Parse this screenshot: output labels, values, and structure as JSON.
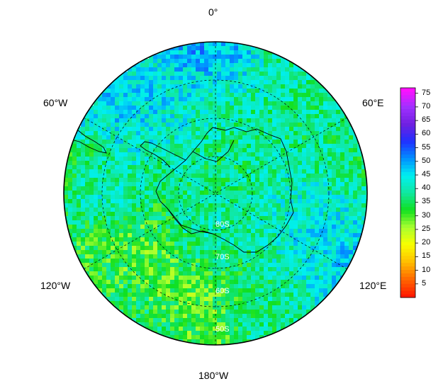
{
  "map": {
    "projection": "south-polar-stereographic",
    "longitude_labels": {
      "top": "0°",
      "upper_left": "60°W",
      "upper_right": "60°E",
      "lower_left": "120°W",
      "lower_right": "120°E",
      "bottom": "180°W"
    },
    "latitude_labels": [
      "80S",
      "70S",
      "60S",
      "50S"
    ],
    "features": [
      "antarctica-coastline",
      "south-america-tip",
      "antarctic-peninsula"
    ]
  },
  "colorbar": {
    "min": 0,
    "max": 77,
    "tick_labels": [
      "75",
      "70",
      "65",
      "60",
      "55",
      "50",
      "45",
      "40",
      "35",
      "30",
      "25",
      "20",
      "15",
      "10",
      "5"
    ],
    "colors": [
      "#ff1a00",
      "#ff6a00",
      "#ffc000",
      "#f8ff00",
      "#a8ff30",
      "#10e020",
      "#10e8a0",
      "#00f0f0",
      "#0090ff",
      "#2030ff",
      "#7020e0",
      "#a030ff",
      "#ff10ff"
    ]
  }
}
